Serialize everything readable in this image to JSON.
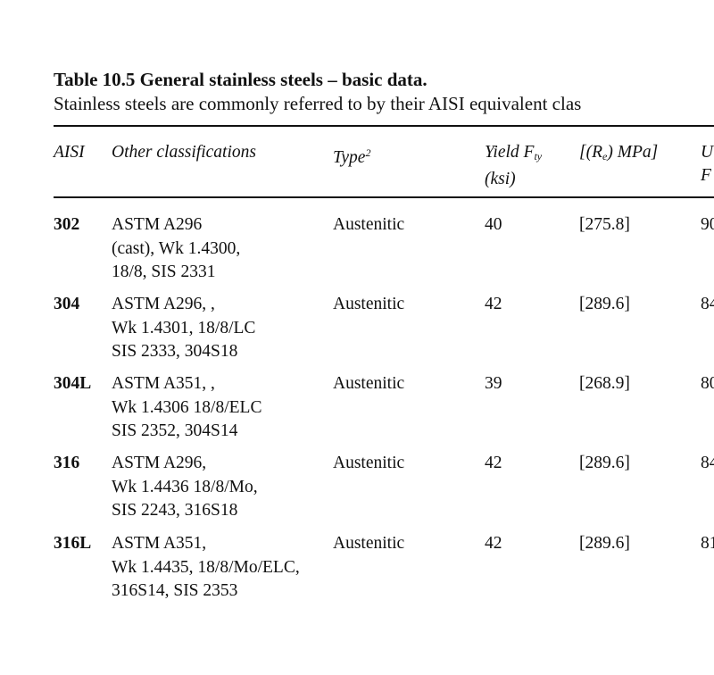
{
  "header": {
    "title": "Table 10.5 General stainless steels – basic data.",
    "subtitle": "Stainless steels are commonly referred  to by their AISI equivalent clas"
  },
  "table": {
    "headers": [
      {
        "text": "AISI"
      },
      {
        "text": "Other classifications"
      },
      {
        "text": "Type",
        "sup": "2"
      },
      {
        "text": "Yield F",
        "sub": "ty",
        "line2": "(ksi)"
      },
      {
        "text": "[(R",
        "sub": "e",
        "after": ") MPa]"
      },
      {
        "text": "U",
        "line2": "F"
      }
    ],
    "rows": [
      [
        "302",
        [
          "ASTM A296",
          "(cast), Wk 1.4300,",
          "18/8, SIS 2331"
        ],
        "Austenitic",
        "40",
        "[275.8]",
        "90"
      ],
      [
        "304",
        [
          "ASTM A296, ,",
          "Wk 1.4301, 18/8/LC",
          "SIS 2333, 304S18"
        ],
        "Austenitic",
        "42",
        "[289.6]",
        "84"
      ],
      [
        "304L",
        [
          "ASTM A351, ,",
          "Wk 1.4306 18/8/ELC",
          "SIS 2352, 304S14"
        ],
        "Austenitic",
        "39",
        "[268.9]",
        "80"
      ],
      [
        "316",
        [
          "ASTM A296,",
          "Wk 1.4436 18/8/Mo,",
          "SIS 2243, 316S18"
        ],
        "Austenitic",
        "42",
        "[289.6]",
        "84"
      ],
      [
        "316L",
        [
          "ASTM A351,",
          "Wk 1.4435, 18/8/Mo/ELC,",
          "316S14, SIS 2353"
        ],
        "Austenitic",
        "42",
        "[289.6]",
        "81"
      ]
    ]
  }
}
